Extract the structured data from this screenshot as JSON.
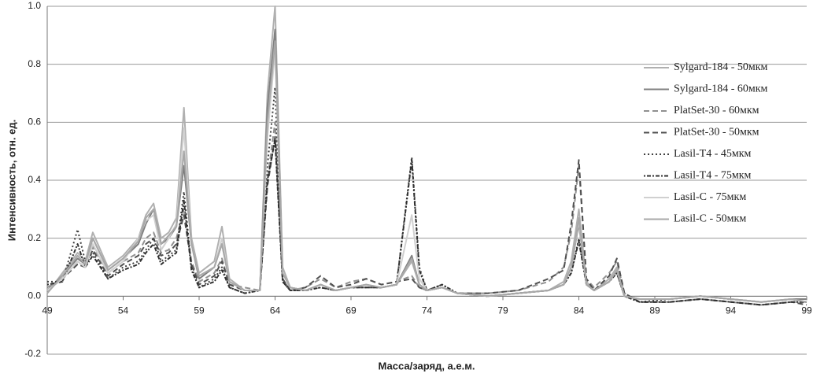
{
  "chart_data": {
    "type": "line",
    "xlabel": "Масса/заряд, а.е.м.",
    "ylabel": "Интенсивность, отн. ед.",
    "x": [
      49,
      50,
      51,
      51.5,
      52,
      53,
      54,
      55,
      55.5,
      56,
      56.5,
      57,
      57.5,
      58,
      58.5,
      59,
      60,
      60.5,
      61,
      62,
      63,
      63.5,
      64,
      64.5,
      65,
      66,
      67,
      68,
      69,
      70,
      71,
      72,
      73,
      73.5,
      74,
      75,
      76,
      78,
      80,
      82,
      83,
      83.5,
      84,
      84.5,
      85,
      86,
      86.5,
      87,
      88,
      90,
      92,
      94,
      96,
      98,
      99
    ],
    "series": [
      {
        "name": "Sylgard-184 - 50мкм",
        "color": "#b0b0b0",
        "style": "solid",
        "values": [
          0.01,
          0.08,
          0.15,
          0.12,
          0.22,
          0.1,
          0.14,
          0.2,
          0.28,
          0.32,
          0.2,
          0.22,
          0.27,
          0.65,
          0.2,
          0.08,
          0.12,
          0.24,
          0.06,
          0.02,
          0.02,
          0.7,
          1.0,
          0.1,
          0.03,
          0.02,
          0.04,
          0.02,
          0.03,
          0.04,
          0.03,
          0.04,
          0.12,
          0.04,
          0.02,
          0.03,
          0.01,
          0.0,
          0.01,
          0.02,
          0.05,
          0.12,
          0.3,
          0.05,
          0.02,
          0.06,
          0.1,
          0.0,
          -0.01,
          -0.01,
          0.0,
          -0.01,
          -0.02,
          -0.01,
          -0.02
        ]
      },
      {
        "name": "Sylgard-184 - 60мкм",
        "color": "#808080",
        "style": "solid",
        "values": [
          0.02,
          0.07,
          0.13,
          0.11,
          0.2,
          0.09,
          0.13,
          0.18,
          0.25,
          0.3,
          0.18,
          0.2,
          0.24,
          0.45,
          0.18,
          0.06,
          0.1,
          0.18,
          0.05,
          0.02,
          0.02,
          0.65,
          0.92,
          0.08,
          0.03,
          0.02,
          0.04,
          0.02,
          0.03,
          0.03,
          0.03,
          0.04,
          0.14,
          0.04,
          0.02,
          0.03,
          0.01,
          0.0,
          0.01,
          0.02,
          0.04,
          0.1,
          0.25,
          0.04,
          0.02,
          0.05,
          0.09,
          0.0,
          -0.01,
          -0.01,
          0.0,
          -0.01,
          -0.02,
          -0.01,
          -0.01
        ]
      },
      {
        "name": "PlatSet-30 - 60мкм",
        "color": "#909090",
        "style": "dashed",
        "values": [
          0.03,
          0.06,
          0.12,
          0.1,
          0.17,
          0.08,
          0.12,
          0.15,
          0.2,
          0.22,
          0.15,
          0.16,
          0.2,
          0.3,
          0.12,
          0.05,
          0.08,
          0.13,
          0.04,
          0.03,
          0.02,
          0.4,
          0.6,
          0.06,
          0.02,
          0.03,
          0.06,
          0.03,
          0.05,
          0.06,
          0.04,
          0.05,
          0.07,
          0.03,
          0.02,
          0.03,
          0.01,
          0.01,
          0.02,
          0.05,
          0.1,
          0.22,
          0.45,
          0.06,
          0.03,
          0.08,
          0.12,
          0.01,
          -0.02,
          -0.02,
          -0.01,
          -0.02,
          -0.03,
          -0.02,
          -0.02
        ]
      },
      {
        "name": "PlatSet-30 - 50мкм",
        "color": "#505050",
        "style": "dashed",
        "values": [
          0.02,
          0.06,
          0.11,
          0.1,
          0.16,
          0.07,
          0.11,
          0.14,
          0.18,
          0.2,
          0.14,
          0.15,
          0.18,
          0.28,
          0.11,
          0.04,
          0.07,
          0.12,
          0.04,
          0.02,
          0.02,
          0.38,
          0.55,
          0.06,
          0.02,
          0.03,
          0.07,
          0.03,
          0.04,
          0.06,
          0.04,
          0.05,
          0.06,
          0.03,
          0.02,
          0.03,
          0.01,
          0.01,
          0.02,
          0.06,
          0.09,
          0.25,
          0.47,
          0.06,
          0.02,
          0.07,
          0.13,
          0.01,
          -0.02,
          -0.02,
          -0.01,
          -0.02,
          -0.03,
          -0.02,
          -0.03
        ]
      },
      {
        "name": "Lasil-T4 - 45мкм",
        "color": "#404040",
        "style": "dotted",
        "values": [
          0.05,
          0.05,
          0.23,
          0.12,
          0.15,
          0.06,
          0.1,
          0.12,
          0.16,
          0.2,
          0.12,
          0.14,
          0.16,
          0.36,
          0.1,
          0.03,
          0.06,
          0.1,
          0.03,
          0.01,
          0.02,
          0.45,
          0.72,
          0.05,
          0.02,
          0.02,
          0.03,
          0.02,
          0.03,
          0.03,
          0.03,
          0.04,
          0.48,
          0.1,
          0.02,
          0.04,
          0.01,
          0.0,
          0.01,
          0.02,
          0.04,
          0.08,
          0.2,
          0.04,
          0.02,
          0.05,
          0.08,
          0.0,
          -0.02,
          -0.01,
          0.0,
          -0.01,
          -0.02,
          -0.01,
          -0.02
        ]
      },
      {
        "name": "Lasil-T4 - 75мкм",
        "color": "#303030",
        "style": "dashdot",
        "values": [
          0.04,
          0.05,
          0.18,
          0.1,
          0.14,
          0.06,
          0.09,
          0.11,
          0.15,
          0.18,
          0.11,
          0.13,
          0.15,
          0.33,
          0.09,
          0.03,
          0.05,
          0.09,
          0.03,
          0.01,
          0.02,
          0.4,
          0.54,
          0.05,
          0.02,
          0.02,
          0.03,
          0.02,
          0.03,
          0.03,
          0.03,
          0.04,
          0.47,
          0.09,
          0.02,
          0.04,
          0.01,
          0.0,
          0.01,
          0.02,
          0.04,
          0.08,
          0.19,
          0.04,
          0.02,
          0.05,
          0.08,
          0.0,
          -0.02,
          -0.02,
          -0.01,
          -0.02,
          -0.03,
          -0.02,
          -0.02
        ]
      },
      {
        "name": "Lasil-C - 75мкм",
        "color": "#d0d0d0",
        "style": "solid",
        "values": [
          0.02,
          0.06,
          0.12,
          0.1,
          0.18,
          0.08,
          0.12,
          0.2,
          0.26,
          0.28,
          0.16,
          0.2,
          0.25,
          0.58,
          0.18,
          0.07,
          0.1,
          0.2,
          0.05,
          0.02,
          0.02,
          0.55,
          0.85,
          0.08,
          0.03,
          0.02,
          0.04,
          0.02,
          0.03,
          0.04,
          0.03,
          0.04,
          0.28,
          0.06,
          0.02,
          0.03,
          0.01,
          0.0,
          0.01,
          0.02,
          0.04,
          0.1,
          0.26,
          0.04,
          0.02,
          0.05,
          0.09,
          0.0,
          -0.01,
          -0.01,
          0.0,
          -0.01,
          -0.02,
          -0.01,
          -0.02
        ]
      },
      {
        "name": "Lasil-C - 50мкм",
        "color": "#a8a8a8",
        "style": "solid",
        "values": [
          0.01,
          0.07,
          0.14,
          0.11,
          0.2,
          0.09,
          0.13,
          0.19,
          0.27,
          0.3,
          0.18,
          0.21,
          0.24,
          0.5,
          0.18,
          0.07,
          0.1,
          0.18,
          0.05,
          0.02,
          0.02,
          0.6,
          0.88,
          0.08,
          0.03,
          0.02,
          0.04,
          0.02,
          0.03,
          0.04,
          0.03,
          0.04,
          0.13,
          0.04,
          0.02,
          0.03,
          0.01,
          0.0,
          0.01,
          0.02,
          0.04,
          0.1,
          0.27,
          0.04,
          0.02,
          0.05,
          0.09,
          0.0,
          -0.01,
          -0.01,
          0.0,
          -0.01,
          -0.02,
          -0.01,
          -0.02
        ]
      }
    ],
    "xlim": [
      49,
      99
    ],
    "xticks": [
      49,
      54,
      59,
      64,
      69,
      74,
      79,
      84,
      89,
      94,
      99
    ],
    "ylim": [
      -0.2,
      1.0
    ],
    "yticks": [
      -0.2,
      {
        "value": 0,
        "label": "0.0"
      },
      0.2,
      0.4,
      0.6,
      0.8,
      {
        "value": 1,
        "label": "1.0"
      }
    ],
    "grid": true,
    "legend": "right"
  }
}
